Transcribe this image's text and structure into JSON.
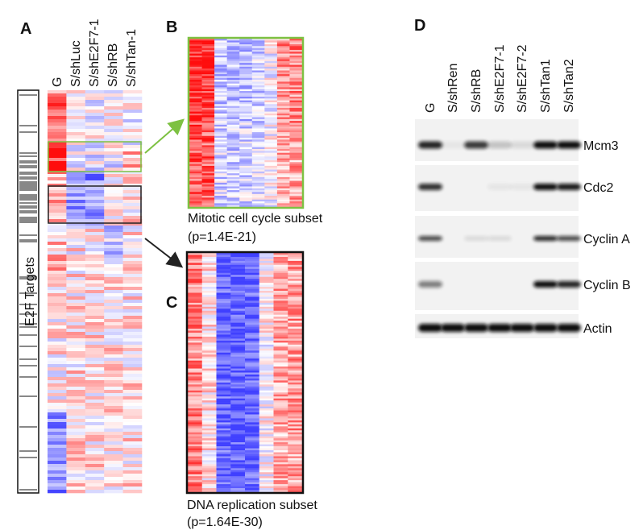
{
  "panel_a": {
    "label": "A",
    "columns": [
      "G",
      "S/shLuc",
      "S/shE2F7-1",
      "S/shRB",
      "S/shTan-1"
    ],
    "row_label": "E2F Targets"
  },
  "panel_b": {
    "label": "B",
    "caption": "Mitotic cell cycle subset",
    "p_value": "(p=1.4E-21)"
  },
  "panel_c": {
    "label": "C",
    "caption": "DNA replication subset",
    "p_value": "(p=1.64E-30)"
  },
  "panel_d": {
    "label": "D",
    "lanes": [
      "G",
      "S/shRen",
      "S/shRB",
      "S/shE2F7-1",
      "S/shE2F7-2",
      "S/shTan1",
      "S/shTan2"
    ],
    "bands": [
      "Mcm3",
      "Cdc2",
      "Cyclin A",
      "Cyclin B",
      "Actin"
    ]
  }
}
